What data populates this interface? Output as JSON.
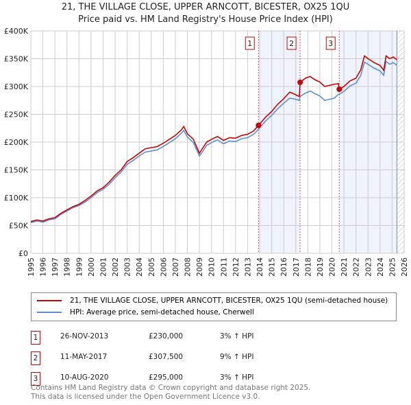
{
  "chart_data": {
    "type": "line",
    "title": "21, THE VILLAGE CLOSE, UPPER ARNCOTT, BICESTER, OX25 1QU",
    "subtitle": "Price paid vs. HM Land Registry's House Price Index (HPI)",
    "xlim": [
      1995,
      2026
    ],
    "ylim": [
      0,
      400000
    ],
    "x_ticks": [
      "1995",
      "1996",
      "1997",
      "1998",
      "1999",
      "2000",
      "2001",
      "2002",
      "2003",
      "2004",
      "2005",
      "2006",
      "2007",
      "2008",
      "2009",
      "2010",
      "2011",
      "2012",
      "2013",
      "2014",
      "2015",
      "2016",
      "2017",
      "2018",
      "2019",
      "2020",
      "2021",
      "2022",
      "2023",
      "2024",
      "2025",
      "2026"
    ],
    "y_ticks": [
      {
        "v": 0,
        "label": "£0"
      },
      {
        "v": 50000,
        "label": "£50K"
      },
      {
        "v": 100000,
        "label": "£100K"
      },
      {
        "v": 150000,
        "label": "£150K"
      },
      {
        "v": 200000,
        "label": "£200K"
      },
      {
        "v": 250000,
        "label": "£250K"
      },
      {
        "v": 300000,
        "label": "£300K"
      },
      {
        "v": 350000,
        "label": "£350K"
      },
      {
        "v": 400000,
        "label": "£400K"
      }
    ],
    "series": [
      {
        "name": "21, THE VILLAGE CLOSE, UPPER ARNCOTT, BICESTER, OX25 1QU (semi-detached house)",
        "color": "#cc0000",
        "x": [
          1995,
          1995.5,
          1996,
          1996.5,
          1997,
          1997.5,
          1998,
          1998.5,
          1999,
          1999.5,
          2000,
          2000.5,
          2001,
          2001.5,
          2002,
          2002.5,
          2003,
          2003.5,
          2004,
          2004.5,
          2005,
          2005.5,
          2006,
          2006.5,
          2007,
          2007.5,
          2007.7,
          2008,
          2008.5,
          2009,
          2009.3,
          2009.6,
          2010,
          2010.5,
          2011,
          2011.5,
          2012,
          2012.5,
          2013,
          2013.5,
          2013.9,
          2014.5,
          2015,
          2015.5,
          2016,
          2016.5,
          2017,
          2017.3,
          2017.36,
          2017.8,
          2018.2,
          2018.6,
          2019,
          2019.4,
          2019.8,
          2020.2,
          2020.55,
          2020.61,
          2021,
          2021.5,
          2022,
          2022.4,
          2022.7,
          2023,
          2023.5,
          2024,
          2024.3,
          2024.5,
          2024.8,
          2025.1,
          2025.4
        ],
        "y": [
          57000,
          60000,
          58000,
          62000,
          64000,
          72000,
          78000,
          84000,
          88000,
          95000,
          103000,
          112000,
          118000,
          128000,
          140000,
          150000,
          165000,
          172000,
          180000,
          188000,
          190000,
          192000,
          198000,
          205000,
          212000,
          222000,
          228000,
          215000,
          205000,
          180000,
          190000,
          200000,
          205000,
          210000,
          203000,
          208000,
          207000,
          212000,
          214000,
          220000,
          230000,
          245000,
          255000,
          268000,
          278000,
          290000,
          285000,
          282000,
          307500,
          315000,
          318000,
          312000,
          308000,
          300000,
          302000,
          304000,
          305000,
          295000,
          300000,
          310000,
          315000,
          330000,
          355000,
          350000,
          343000,
          338000,
          329000,
          355000,
          350000,
          353000,
          348000
        ]
      },
      {
        "name": "HPI: Average price, semi-detached house, Cherwell",
        "color": "#5b8fd4",
        "x": [
          1995,
          1995.5,
          1996,
          1996.5,
          1997,
          1997.5,
          1998,
          1998.5,
          1999,
          1999.5,
          2000,
          2000.5,
          2001,
          2001.5,
          2002,
          2002.5,
          2003,
          2003.5,
          2004,
          2004.5,
          2005,
          2005.5,
          2006,
          2006.5,
          2007,
          2007.5,
          2007.7,
          2008,
          2008.5,
          2009,
          2009.3,
          2009.6,
          2010,
          2010.5,
          2011,
          2011.5,
          2012,
          2012.5,
          2013,
          2013.5,
          2013.9,
          2014.5,
          2015,
          2015.5,
          2016,
          2016.5,
          2017,
          2017.3,
          2017.36,
          2017.8,
          2018.2,
          2018.6,
          2019,
          2019.4,
          2019.8,
          2020.2,
          2020.55,
          2020.61,
          2021,
          2021.5,
          2022,
          2022.4,
          2022.7,
          2023,
          2023.5,
          2024,
          2024.3,
          2024.5,
          2024.8,
          2025.1,
          2025.4
        ],
        "y": [
          55000,
          58000,
          56000,
          60000,
          62000,
          70000,
          76000,
          82000,
          86000,
          92000,
          100000,
          109000,
          115000,
          124000,
          136000,
          146000,
          160000,
          167000,
          175000,
          182000,
          184000,
          186000,
          192000,
          199000,
          206000,
          216000,
          221000,
          209000,
          199000,
          175000,
          184000,
          194000,
          199000,
          204000,
          197000,
          202000,
          201000,
          206000,
          208000,
          214000,
          223000,
          238000,
          248000,
          260000,
          270000,
          279000,
          277000,
          275000,
          282000,
          288000,
          292000,
          287000,
          283000,
          275000,
          277000,
          279000,
          286000,
          286000,
          291000,
          301000,
          306000,
          320000,
          344000,
          340000,
          333000,
          328000,
          320000,
          345000,
          340000,
          343000,
          338000
        ]
      }
    ],
    "sales": [
      {
        "num": "1",
        "x": 2013.9,
        "date": "26-NOV-2013",
        "price": "£230,000",
        "price_value": 230000,
        "hpi": "3% ↑ HPI"
      },
      {
        "num": "2",
        "x": 2017.36,
        "date": "11-MAY-2017",
        "price": "£307,500",
        "price_value": 307500,
        "hpi": "9% ↑ HPI"
      },
      {
        "num": "3",
        "x": 2020.61,
        "date": "10-AUG-2020",
        "price": "£295,000",
        "price_value": 295000,
        "hpi": "3% ↑ HPI"
      }
    ],
    "shaded_ranges": [
      [
        2013.9,
        2017.36
      ],
      [
        2020.61,
        2025.4
      ]
    ],
    "hatch_from": 2025.4
  },
  "footer": [
    "Contains HM Land Registry data © Crown copyright and database right 2025.",
    "This data is licensed under the Open Government Licence v3.0."
  ]
}
